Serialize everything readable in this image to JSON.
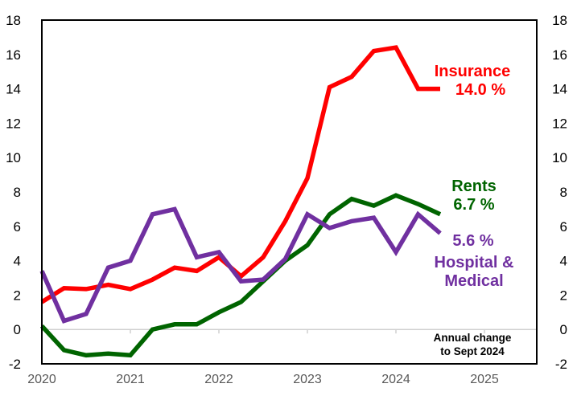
{
  "chart_data": {
    "type": "line",
    "title": "",
    "xlabel": "",
    "ylabel": "",
    "x_start": 2020.0,
    "x_step": 0.25,
    "xlim": [
      2020,
      2025.6
    ],
    "ylim": [
      -2,
      18
    ],
    "y_ticks": [
      "18",
      "16",
      "14",
      "12",
      "10",
      "8",
      "6",
      "4",
      "2",
      "0",
      "-2"
    ],
    "y_tick_values": [
      18,
      16,
      14,
      12,
      10,
      8,
      6,
      4,
      2,
      0,
      -2
    ],
    "x_ticks": [
      "2020",
      "2021",
      "2022",
      "2023",
      "2024",
      "2025"
    ],
    "x_tick_values": [
      2020,
      2021,
      2022,
      2023,
      2024,
      2025
    ],
    "grid": false,
    "series": [
      {
        "name": "Insurance",
        "color": "#ff0000",
        "values": [
          1.6,
          2.4,
          2.35,
          2.6,
          2.35,
          2.9,
          3.6,
          3.4,
          4.2,
          3.1,
          4.2,
          6.3,
          8.8,
          14.1,
          14.7,
          16.2,
          16.4,
          14.0,
          14.0
        ]
      },
      {
        "name": "Rents",
        "color": "#006400",
        "values": [
          0.2,
          -1.2,
          -1.5,
          -1.4,
          -1.5,
          0.0,
          0.3,
          0.3,
          1.0,
          1.6,
          2.8,
          4.0,
          4.9,
          6.7,
          7.6,
          7.2,
          7.8,
          7.3,
          6.7
        ]
      },
      {
        "name": "Hospital & Medical",
        "color": "#7030a0",
        "values": [
          3.4,
          0.5,
          0.9,
          3.6,
          4.0,
          6.7,
          7.0,
          4.2,
          4.5,
          2.8,
          2.9,
          4.1,
          6.7,
          5.9,
          6.3,
          6.5,
          4.5,
          6.7,
          5.6
        ]
      }
    ],
    "annotations": {
      "insurance_name": "Insurance",
      "insurance_value": "14.0 %",
      "rents_name": "Rents",
      "rents_value": "6.7 %",
      "hospital_value": "5.6 %",
      "hospital_line1": "Hospital &",
      "hospital_line2": "Medical",
      "note_line1": "Annual change",
      "note_line2": "to Sept 2024"
    }
  }
}
